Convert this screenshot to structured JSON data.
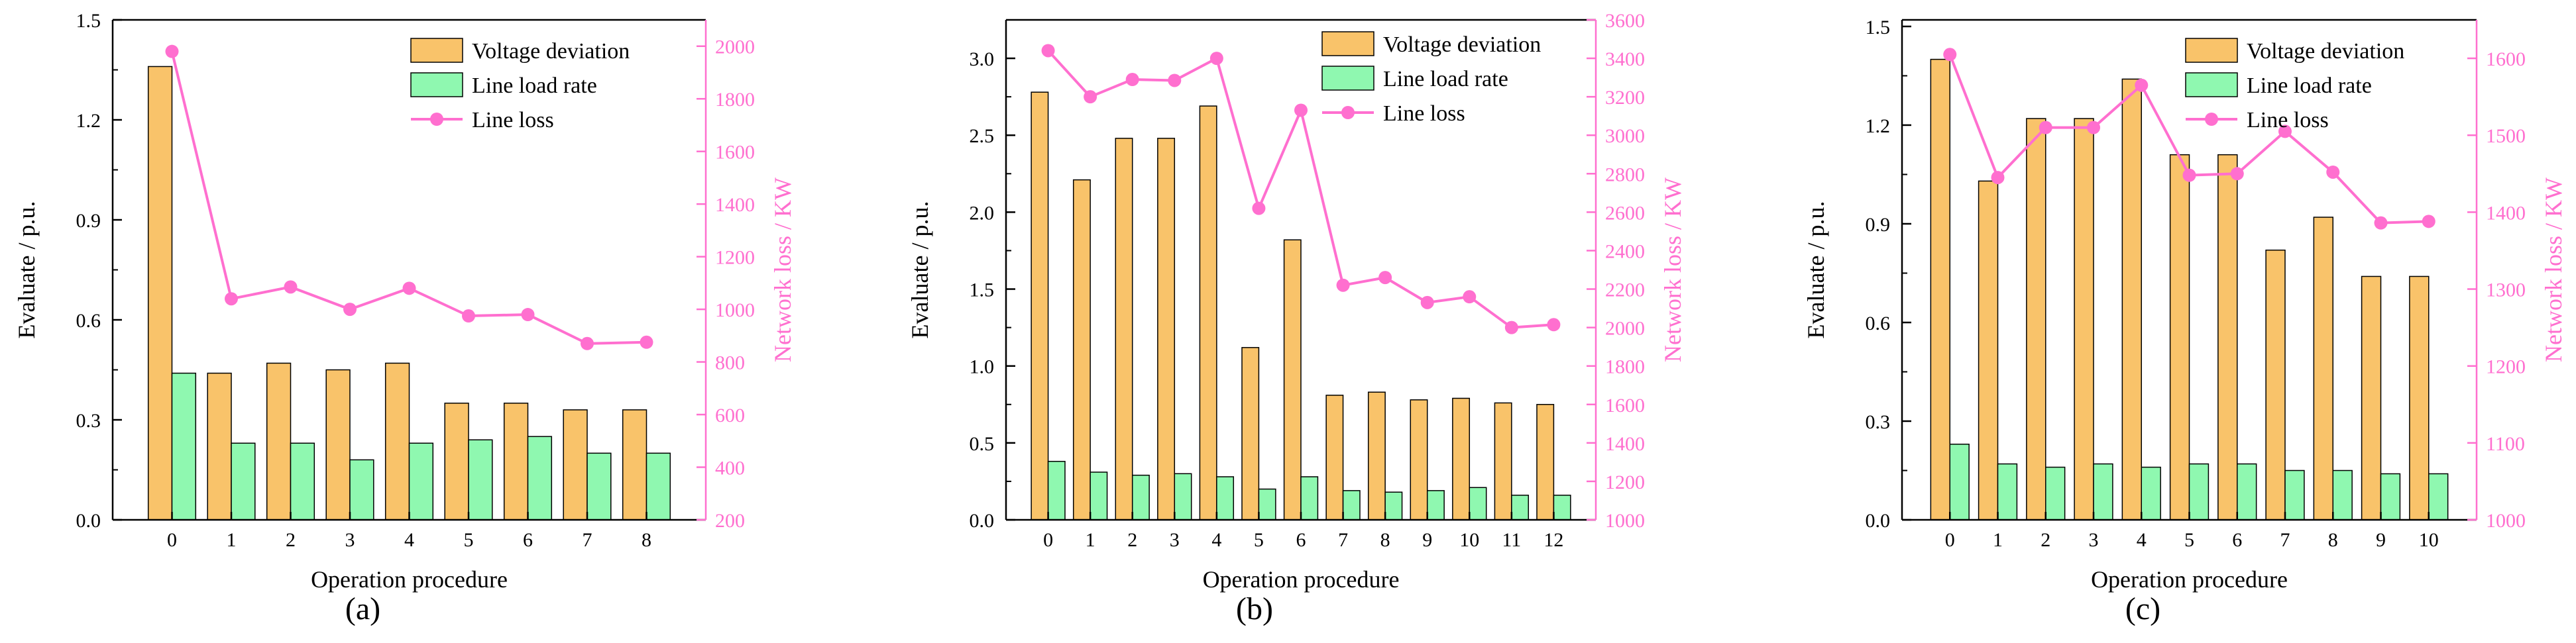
{
  "colors": {
    "voltage": "#f9c36a",
    "load": "#8ff8b0",
    "loss": "#ff6fcf",
    "axis": "#000000"
  },
  "chart_data": [
    {
      "type": "bar",
      "caption": "(a)",
      "xlabel": "Operation procedure",
      "ylabel": "Evaluate / p.u.",
      "y2label": "Network loss / KW",
      "categories": [
        "0",
        "1",
        "2",
        "3",
        "4",
        "5",
        "6",
        "7",
        "8"
      ],
      "ylim": [
        0,
        1.5
      ],
      "yticks": [
        0.0,
        0.3,
        0.6,
        0.9,
        1.2,
        1.5
      ],
      "ytick_labels": [
        "0.0",
        "0.3",
        "0.6",
        "0.9",
        "1.2",
        "1.5"
      ],
      "y2lim": [
        200,
        2100
      ],
      "y2ticks": [
        200,
        400,
        600,
        800,
        1000,
        1200,
        1400,
        1600,
        1800,
        2000
      ],
      "y2tick_labels": [
        "200",
        "400",
        "600",
        "800",
        "1000",
        "1200",
        "1400",
        "1600",
        "1800",
        "2000"
      ],
      "series": [
        {
          "name": "Voltage deviation",
          "kind": "bar",
          "axis": "left",
          "values": [
            1.36,
            0.44,
            0.47,
            0.45,
            0.47,
            0.35,
            0.35,
            0.33,
            0.33
          ]
        },
        {
          "name": "Line load rate",
          "kind": "bar",
          "axis": "left",
          "values": [
            0.44,
            0.23,
            0.23,
            0.18,
            0.23,
            0.24,
            0.25,
            0.2,
            0.2
          ]
        },
        {
          "name": "Line loss",
          "kind": "line",
          "axis": "right",
          "values": [
            1980,
            1040,
            1085,
            1000,
            1080,
            975,
            980,
            870,
            875
          ]
        }
      ]
    },
    {
      "type": "bar",
      "caption": "(b)",
      "xlabel": "Operation procedure",
      "ylabel": "Evaluate / p.u.",
      "y2label": "Network loss / KW",
      "categories": [
        "0",
        "1",
        "2",
        "3",
        "4",
        "5",
        "6",
        "7",
        "8",
        "9",
        "10",
        "11",
        "12"
      ],
      "ylim": [
        0,
        3.25
      ],
      "yticks": [
        0.0,
        0.5,
        1.0,
        1.5,
        2.0,
        2.5,
        3.0
      ],
      "ytick_labels": [
        "0.0",
        "0.5",
        "1.0",
        "1.5",
        "2.0",
        "2.5",
        "3.0"
      ],
      "y2lim": [
        1000,
        3600
      ],
      "y2ticks": [
        1000,
        1200,
        1400,
        1600,
        1800,
        2000,
        2200,
        2400,
        2600,
        2800,
        3000,
        3200,
        3400,
        3600
      ],
      "y2tick_labels": [
        "1000",
        "1200",
        "1400",
        "1600",
        "1800",
        "2000",
        "2200",
        "2400",
        "2600",
        "2800",
        "3000",
        "3200",
        "3400",
        "3600"
      ],
      "series": [
        {
          "name": "Voltage deviation",
          "kind": "bar",
          "axis": "left",
          "values": [
            2.78,
            2.21,
            2.48,
            2.48,
            2.69,
            1.12,
            1.82,
            0.81,
            0.83,
            0.78,
            0.79,
            0.76,
            0.75
          ]
        },
        {
          "name": "Line load rate",
          "kind": "bar",
          "axis": "left",
          "values": [
            0.38,
            0.31,
            0.29,
            0.3,
            0.28,
            0.2,
            0.28,
            0.19,
            0.18,
            0.19,
            0.21,
            0.16,
            0.16
          ]
        },
        {
          "name": "Line loss",
          "kind": "line",
          "axis": "right",
          "values": [
            3440,
            3200,
            3290,
            3285,
            3400,
            2620,
            3130,
            2220,
            2260,
            2130,
            2160,
            2000,
            2015
          ]
        }
      ]
    },
    {
      "type": "bar",
      "caption": "(c)",
      "xlabel": "Operation procedure",
      "ylabel": "Evaluate / p.u.",
      "y2label": "Network loss / KW",
      "categories": [
        "0",
        "1",
        "2",
        "3",
        "4",
        "5",
        "6",
        "7",
        "8",
        "9",
        "10"
      ],
      "ylim": [
        0,
        1.52
      ],
      "yticks": [
        0.0,
        0.3,
        0.6,
        0.9,
        1.2,
        1.5
      ],
      "ytick_labels": [
        "0.0",
        "0.3",
        "0.6",
        "0.9",
        "1.2",
        "1.5"
      ],
      "y2lim": [
        1000,
        1650
      ],
      "y2ticks": [
        1000,
        1100,
        1200,
        1300,
        1400,
        1500,
        1600
      ],
      "y2tick_labels": [
        "1000",
        "1100",
        "1200",
        "1300",
        "1400",
        "1500",
        "1600"
      ],
      "series": [
        {
          "name": "Voltage deviation",
          "kind": "bar",
          "axis": "left",
          "values": [
            1.4,
            1.03,
            1.22,
            1.22,
            1.34,
            1.11,
            1.11,
            0.82,
            0.92,
            0.74,
            0.74
          ]
        },
        {
          "name": "Line load rate",
          "kind": "bar",
          "axis": "left",
          "values": [
            0.23,
            0.17,
            0.16,
            0.17,
            0.16,
            0.17,
            0.17,
            0.15,
            0.15,
            0.14,
            0.14
          ]
        },
        {
          "name": "Line loss",
          "kind": "line",
          "axis": "right",
          "values": [
            1605,
            1445,
            1510,
            1510,
            1565,
            1448,
            1450,
            1505,
            1452,
            1386,
            1388
          ]
        }
      ]
    }
  ]
}
